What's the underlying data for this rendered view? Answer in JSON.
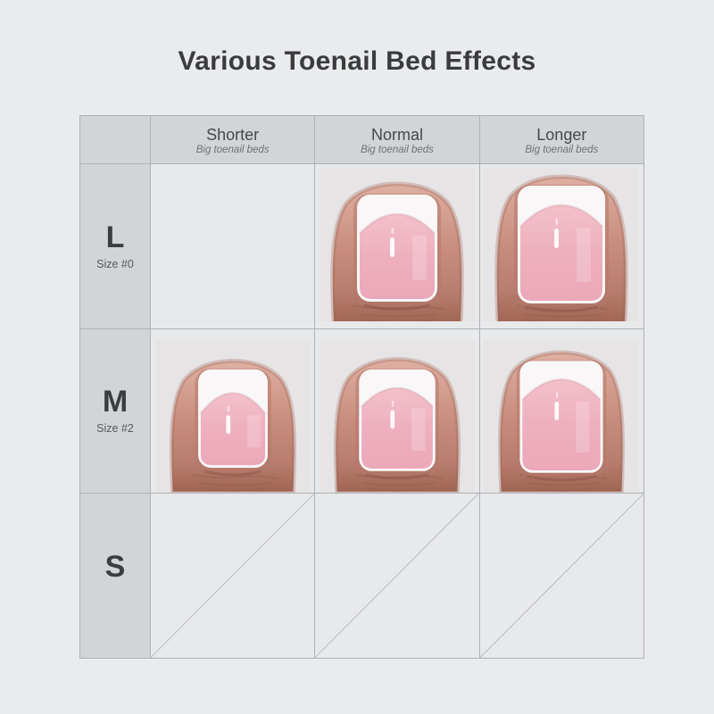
{
  "page": {
    "title": "Various Toenail Bed Effects"
  },
  "table": {
    "header": {
      "columns": [
        {
          "label": "Shorter",
          "subtitle": "Big toenail beds"
        },
        {
          "label": "Normal",
          "subtitle": "Big toenail beds"
        },
        {
          "label": "Longer",
          "subtitle": "Big toenail beds"
        }
      ]
    },
    "rows": [
      {
        "label": "L",
        "size_label": "Size #0",
        "cells": [
          {
            "type": "empty"
          },
          {
            "type": "photo",
            "variant": "normal"
          },
          {
            "type": "photo",
            "variant": "longer"
          }
        ]
      },
      {
        "label": "M",
        "size_label": "Size #2",
        "cells": [
          {
            "type": "photo",
            "variant": "shorter"
          },
          {
            "type": "photo",
            "variant": "normal"
          },
          {
            "type": "photo",
            "variant": "longer"
          }
        ]
      },
      {
        "label": "S",
        "size_label": "",
        "cells": [
          {
            "type": "diagonal"
          },
          {
            "type": "diagonal"
          },
          {
            "type": "diagonal"
          }
        ]
      }
    ]
  },
  "colors": {
    "page_bg": "#eaebec",
    "title_text": "#3a3b3d",
    "header_bg": "#d2d4d7",
    "cell_bg": "#e8e9eb",
    "grid_line": "#aeb1b6",
    "diagonal_line": "#b8bbbf",
    "header_text": "#46484c",
    "subtitle_text": "#6f7174",
    "label_text": "#3b3d41",
    "size_text": "#56585c",
    "photo_bg": "#e6e4e5",
    "nail_pink": "#eeafbe",
    "nail_pink_light": "#f3c0cb",
    "nail_tip_white": "#f9f7f8",
    "skin_light": "#dfb0a3",
    "skin_mid": "#c98e7f",
    "skin_dark": "#a06553",
    "cuticle": "#b5786b"
  }
}
